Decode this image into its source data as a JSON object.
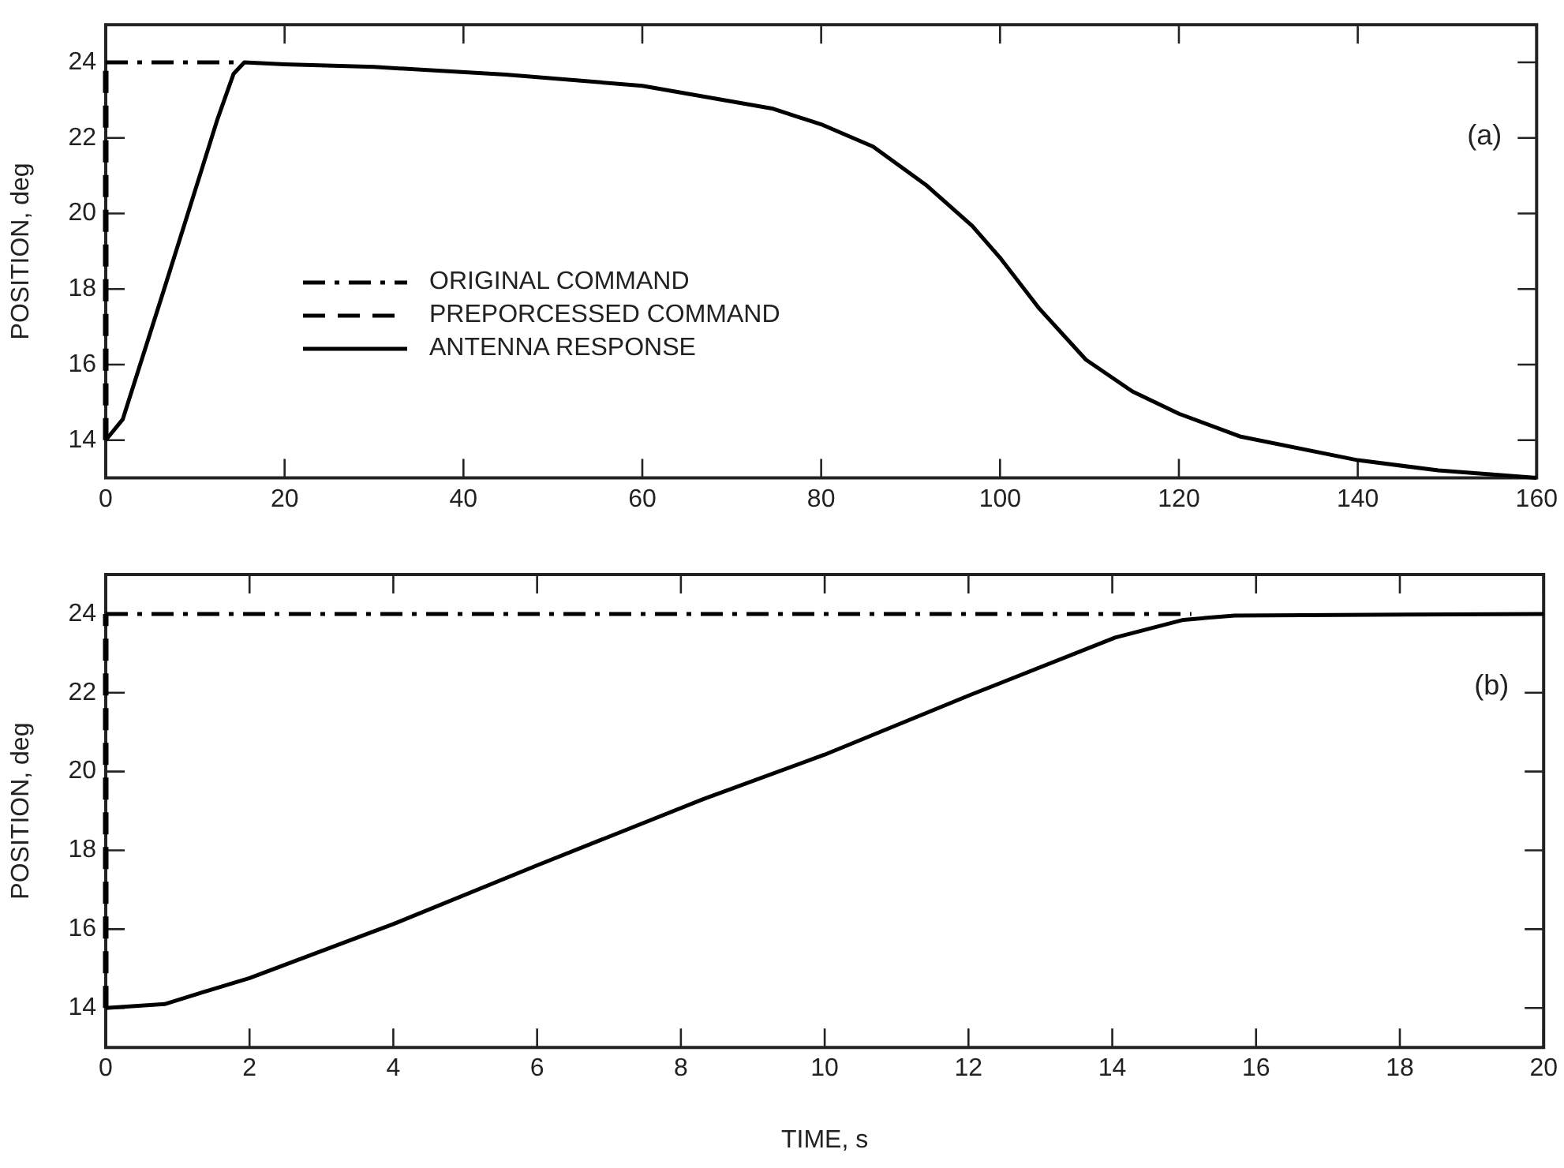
{
  "chart_data": [
    {
      "type": "line",
      "ylabel": "POSITION, deg",
      "annotations": [
        "(a)"
      ],
      "xlim": [
        0,
        160
      ],
      "xticks": [
        0,
        20,
        40,
        60,
        80,
        100,
        120,
        140,
        160
      ],
      "ylim": [
        13,
        25
      ],
      "yticks": [
        14,
        16,
        18,
        20,
        22,
        24
      ],
      "legend": "center left",
      "grid": false,
      "marker": "none",
      "series": [
        {
          "name": "ORIGINAL COMMAND",
          "color": "#000000",
          "line_style": "dashdot",
          "x": [
            0,
            15
          ],
          "values": [
            24,
            24
          ]
        },
        {
          "name": "PREPORCESSED COMMAND",
          "color": "#000000",
          "line_style": "dashed",
          "x": [
            0,
            0
          ],
          "values": [
            14,
            24
          ]
        },
        {
          "name": "ANTENNA RESPONSE",
          "color": "#000000",
          "line_style": "solid",
          "x": [
            0,
            1.9,
            6.6,
            12.5,
            14.3,
            15.5,
            20,
            30,
            44.7,
            60,
            74.5,
            80,
            85.8,
            91.7,
            96.9,
            100,
            104.4,
            109.6,
            114.8,
            120,
            126.8,
            140,
            149,
            160
          ],
          "values": [
            14,
            14.55,
            18.05,
            22.5,
            23.7,
            24,
            23.95,
            23.88,
            23.68,
            23.38,
            22.78,
            22.36,
            21.77,
            20.76,
            19.67,
            18.83,
            17.48,
            16.13,
            15.29,
            14.7,
            14.1,
            13.47,
            13.2,
            13
          ]
        }
      ]
    },
    {
      "type": "line",
      "ylabel": "POSITION, deg",
      "xlabel": "TIME, s",
      "annotations": [
        "(b)"
      ],
      "xlim": [
        0,
        20
      ],
      "xticks": [
        0,
        2,
        4,
        6,
        8,
        10,
        12,
        14,
        16,
        18,
        20
      ],
      "ylim": [
        13,
        25
      ],
      "yticks": [
        14,
        16,
        18,
        20,
        22,
        24
      ],
      "grid": false,
      "marker": "none",
      "series": [
        {
          "color": "#000000",
          "line_style": "dashdot",
          "x": [
            0,
            15.1
          ],
          "values": [
            24,
            24
          ]
        },
        {
          "color": "#000000",
          "line_style": "dashed",
          "x": [
            0,
            0
          ],
          "values": [
            14,
            24
          ]
        },
        {
          "color": "#000000",
          "line_style": "solid",
          "x": [
            0,
            0.82,
            1.42,
            2,
            4,
            6,
            8.31,
            10,
            12.02,
            14.04,
            14.99,
            15.7,
            20
          ],
          "values": [
            14,
            14.1,
            14.44,
            14.76,
            16.13,
            17.62,
            19.3,
            20.43,
            21.94,
            23.4,
            23.85,
            23.96,
            24
          ]
        }
      ]
    }
  ]
}
